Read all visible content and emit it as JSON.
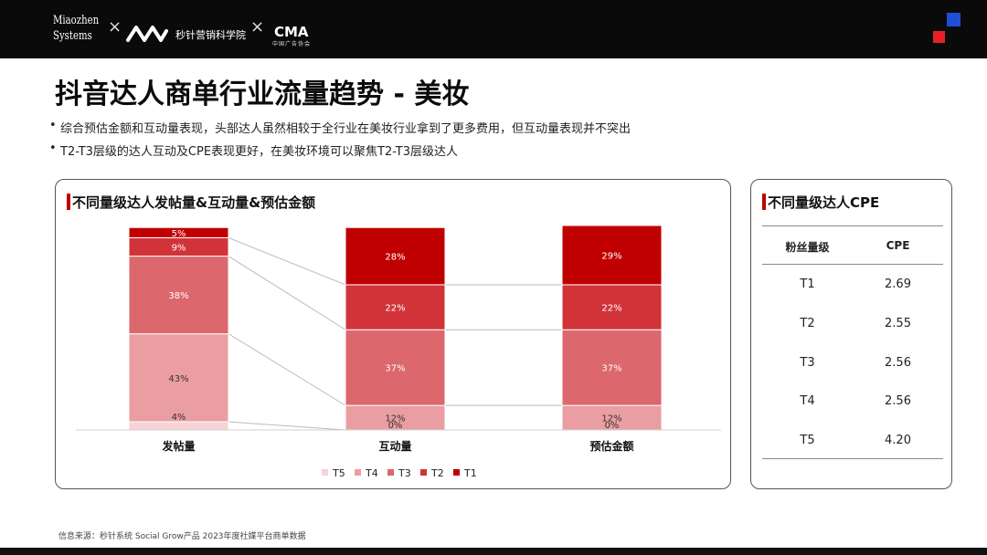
{
  "header": {
    "logo_miaozhen_line1": "Miaozhen",
    "logo_miaozhen_line2": "Systems",
    "separator": "×",
    "academy_name": "秒针营销科学院",
    "cma_logo_text": "CMA",
    "cma_logo_sub": "中国广告协会",
    "accent_blue": "#1f4fd6",
    "accent_red": "#e8202a"
  },
  "page": {
    "title": "抖音达人商单行业流量趋势 - 美妆",
    "bullets": [
      "综合预估金额和互动量表现，头部达人虽然相较于全行业在美妆行业拿到了更多费用，但互动量表现并不突出",
      "T2-T3层级的达人互动及CPE表现更好，在美妆环境可以聚焦T2-T3层级达人"
    ],
    "source": "信息来源：秒针系统 Social Grow产品 2023年度社媒平台商单数据"
  },
  "chart_panel": {
    "title": "不同量级达人发帖量&互动量&预估金额"
  },
  "chart_data": {
    "type": "bar",
    "stacked": true,
    "normalized": true,
    "title": "不同量级达人发帖量&互动量&预估金额",
    "categories": [
      "发帖量",
      "互动量",
      "预估金额"
    ],
    "series": [
      {
        "name": "T5",
        "color": "#f7d3d5",
        "values": [
          4,
          0,
          0
        ],
        "labels": [
          "4%",
          "0%",
          "0%"
        ]
      },
      {
        "name": "T4",
        "color": "#ea9ea2",
        "values": [
          43,
          12,
          12
        ],
        "labels": [
          "43%",
          "12%",
          "12%"
        ]
      },
      {
        "name": "T3",
        "color": "#dc676c",
        "values": [
          38,
          37,
          37
        ],
        "labels": [
          "38%",
          "37%",
          "37%"
        ]
      },
      {
        "name": "T2",
        "color": "#d03439",
        "values": [
          9,
          22,
          22
        ],
        "labels": [
          "9%",
          "22%",
          "22%"
        ]
      },
      {
        "name": "T1",
        "color": "#c00000",
        "values": [
          5,
          28,
          29
        ],
        "labels": [
          "5%",
          "28%",
          "29%"
        ]
      }
    ],
    "ylim": [
      0,
      100
    ],
    "legend_position": "bottom",
    "grid": false
  },
  "cpe_panel": {
    "title": "不同量级达人CPE",
    "headers": [
      "粉丝量级",
      "CPE"
    ],
    "rows": [
      {
        "tier": "T1",
        "cpe": "2.69"
      },
      {
        "tier": "T2",
        "cpe": "2.55"
      },
      {
        "tier": "T3",
        "cpe": "2.56"
      },
      {
        "tier": "T4",
        "cpe": "2.56"
      },
      {
        "tier": "T5",
        "cpe": "4.20"
      }
    ]
  }
}
